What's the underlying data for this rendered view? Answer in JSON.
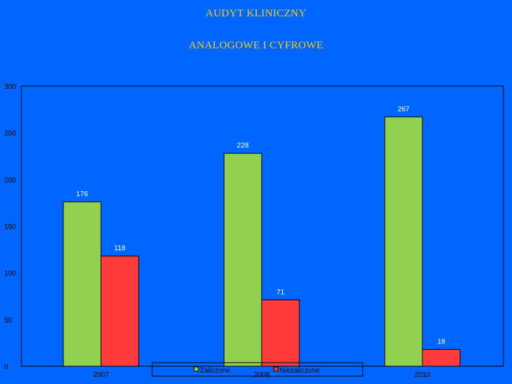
{
  "titles": {
    "line1": "AUDYT KLINICZNY",
    "line2": "ANALOGOWE I CYFROWE"
  },
  "colors": {
    "background": "#0066ff",
    "title": "#ffcc00",
    "series_zaliczone": "#92d050",
    "series_niezaliczone": "#ff3b3b"
  },
  "chart_data": {
    "type": "bar",
    "categories": [
      "2007",
      "2008",
      "2010"
    ],
    "series": [
      {
        "name": "Zaliczone",
        "values": [
          176,
          228,
          267
        ],
        "color": "#92d050"
      },
      {
        "name": "Niezaliczone",
        "values": [
          118,
          71,
          18
        ],
        "color": "#ff3b3b"
      }
    ],
    "ylim": [
      0,
      300
    ],
    "yticks": [
      0,
      50,
      100,
      150,
      200,
      250,
      300
    ],
    "grid": false,
    "legend_position": "bottom-center",
    "data_labels": true
  }
}
